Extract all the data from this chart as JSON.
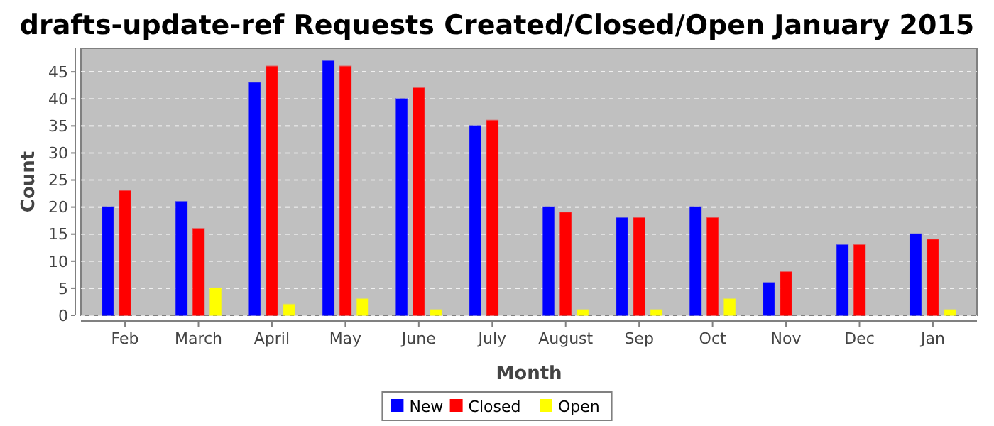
{
  "chart_data": {
    "type": "bar",
    "title": "drafts-update-ref Requests Created/Closed/Open January 2015",
    "xlabel": "Month",
    "ylabel": "Count",
    "categories": [
      "Feb",
      "March",
      "April",
      "May",
      "June",
      "July",
      "August",
      "Sep",
      "Oct",
      "Nov",
      "Dec",
      "Jan"
    ],
    "series": [
      {
        "name": "New",
        "color": "#0000ff",
        "values": [
          20,
          21,
          43,
          47,
          40,
          35,
          20,
          18,
          20,
          6,
          13,
          15
        ]
      },
      {
        "name": "Closed",
        "color": "#ff0000",
        "values": [
          23,
          16,
          46,
          46,
          42,
          36,
          19,
          18,
          18,
          8,
          13,
          14
        ]
      },
      {
        "name": "Open",
        "color": "#ffff00",
        "values": [
          0,
          5,
          2,
          3,
          1,
          0,
          1,
          1,
          3,
          0,
          0,
          1
        ]
      }
    ],
    "ylim": [
      0,
      49.35
    ],
    "yticks": [
      0,
      5,
      10,
      15,
      20,
      25,
      30,
      35,
      40,
      45
    ],
    "grid": "y",
    "legend": "bottom"
  }
}
